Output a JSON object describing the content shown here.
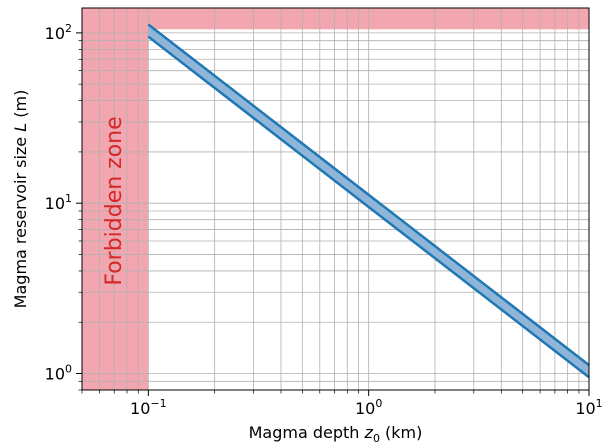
{
  "chart_data": {
    "type": "area",
    "xlabel_main": "Magma depth ",
    "xlabel_sym": "z",
    "xlabel_sub": "0",
    "xlabel_unit": " (km)",
    "ylabel_main": "Magma reservoir size ",
    "ylabel_sym": "L",
    "ylabel_unit": " (m)",
    "x_scale": "log",
    "y_scale": "log",
    "xlim": [
      0.05,
      10
    ],
    "ylim": [
      0.8,
      140
    ],
    "x_ticks": [
      {
        "value": 0.1,
        "base": "10",
        "exp": "−1"
      },
      {
        "value": 1,
        "base": "10",
        "exp": "0"
      },
      {
        "value": 10,
        "base": "10",
        "exp": "1"
      }
    ],
    "y_ticks": [
      {
        "value": 1,
        "base": "10",
        "exp": "0"
      },
      {
        "value": 10,
        "base": "10",
        "exp": "1"
      },
      {
        "value": 100,
        "base": "10",
        "exp": "2"
      }
    ],
    "grid": true,
    "band": {
      "x": [
        0.1,
        10
      ],
      "upper": [
        112,
        1.12
      ],
      "lower": [
        95,
        0.95
      ],
      "fill_color": "#8fb5d9",
      "line_color": "#1f77b4"
    },
    "forbidden_vertical": {
      "x_from": 0.05,
      "x_to": 0.1
    },
    "forbidden_horizontal": {
      "y_from": 105,
      "y_to": 140
    },
    "forbidden_color": "#f2a7b0",
    "annotation": {
      "text": "Forbidden zone",
      "color": "#d62728"
    }
  }
}
